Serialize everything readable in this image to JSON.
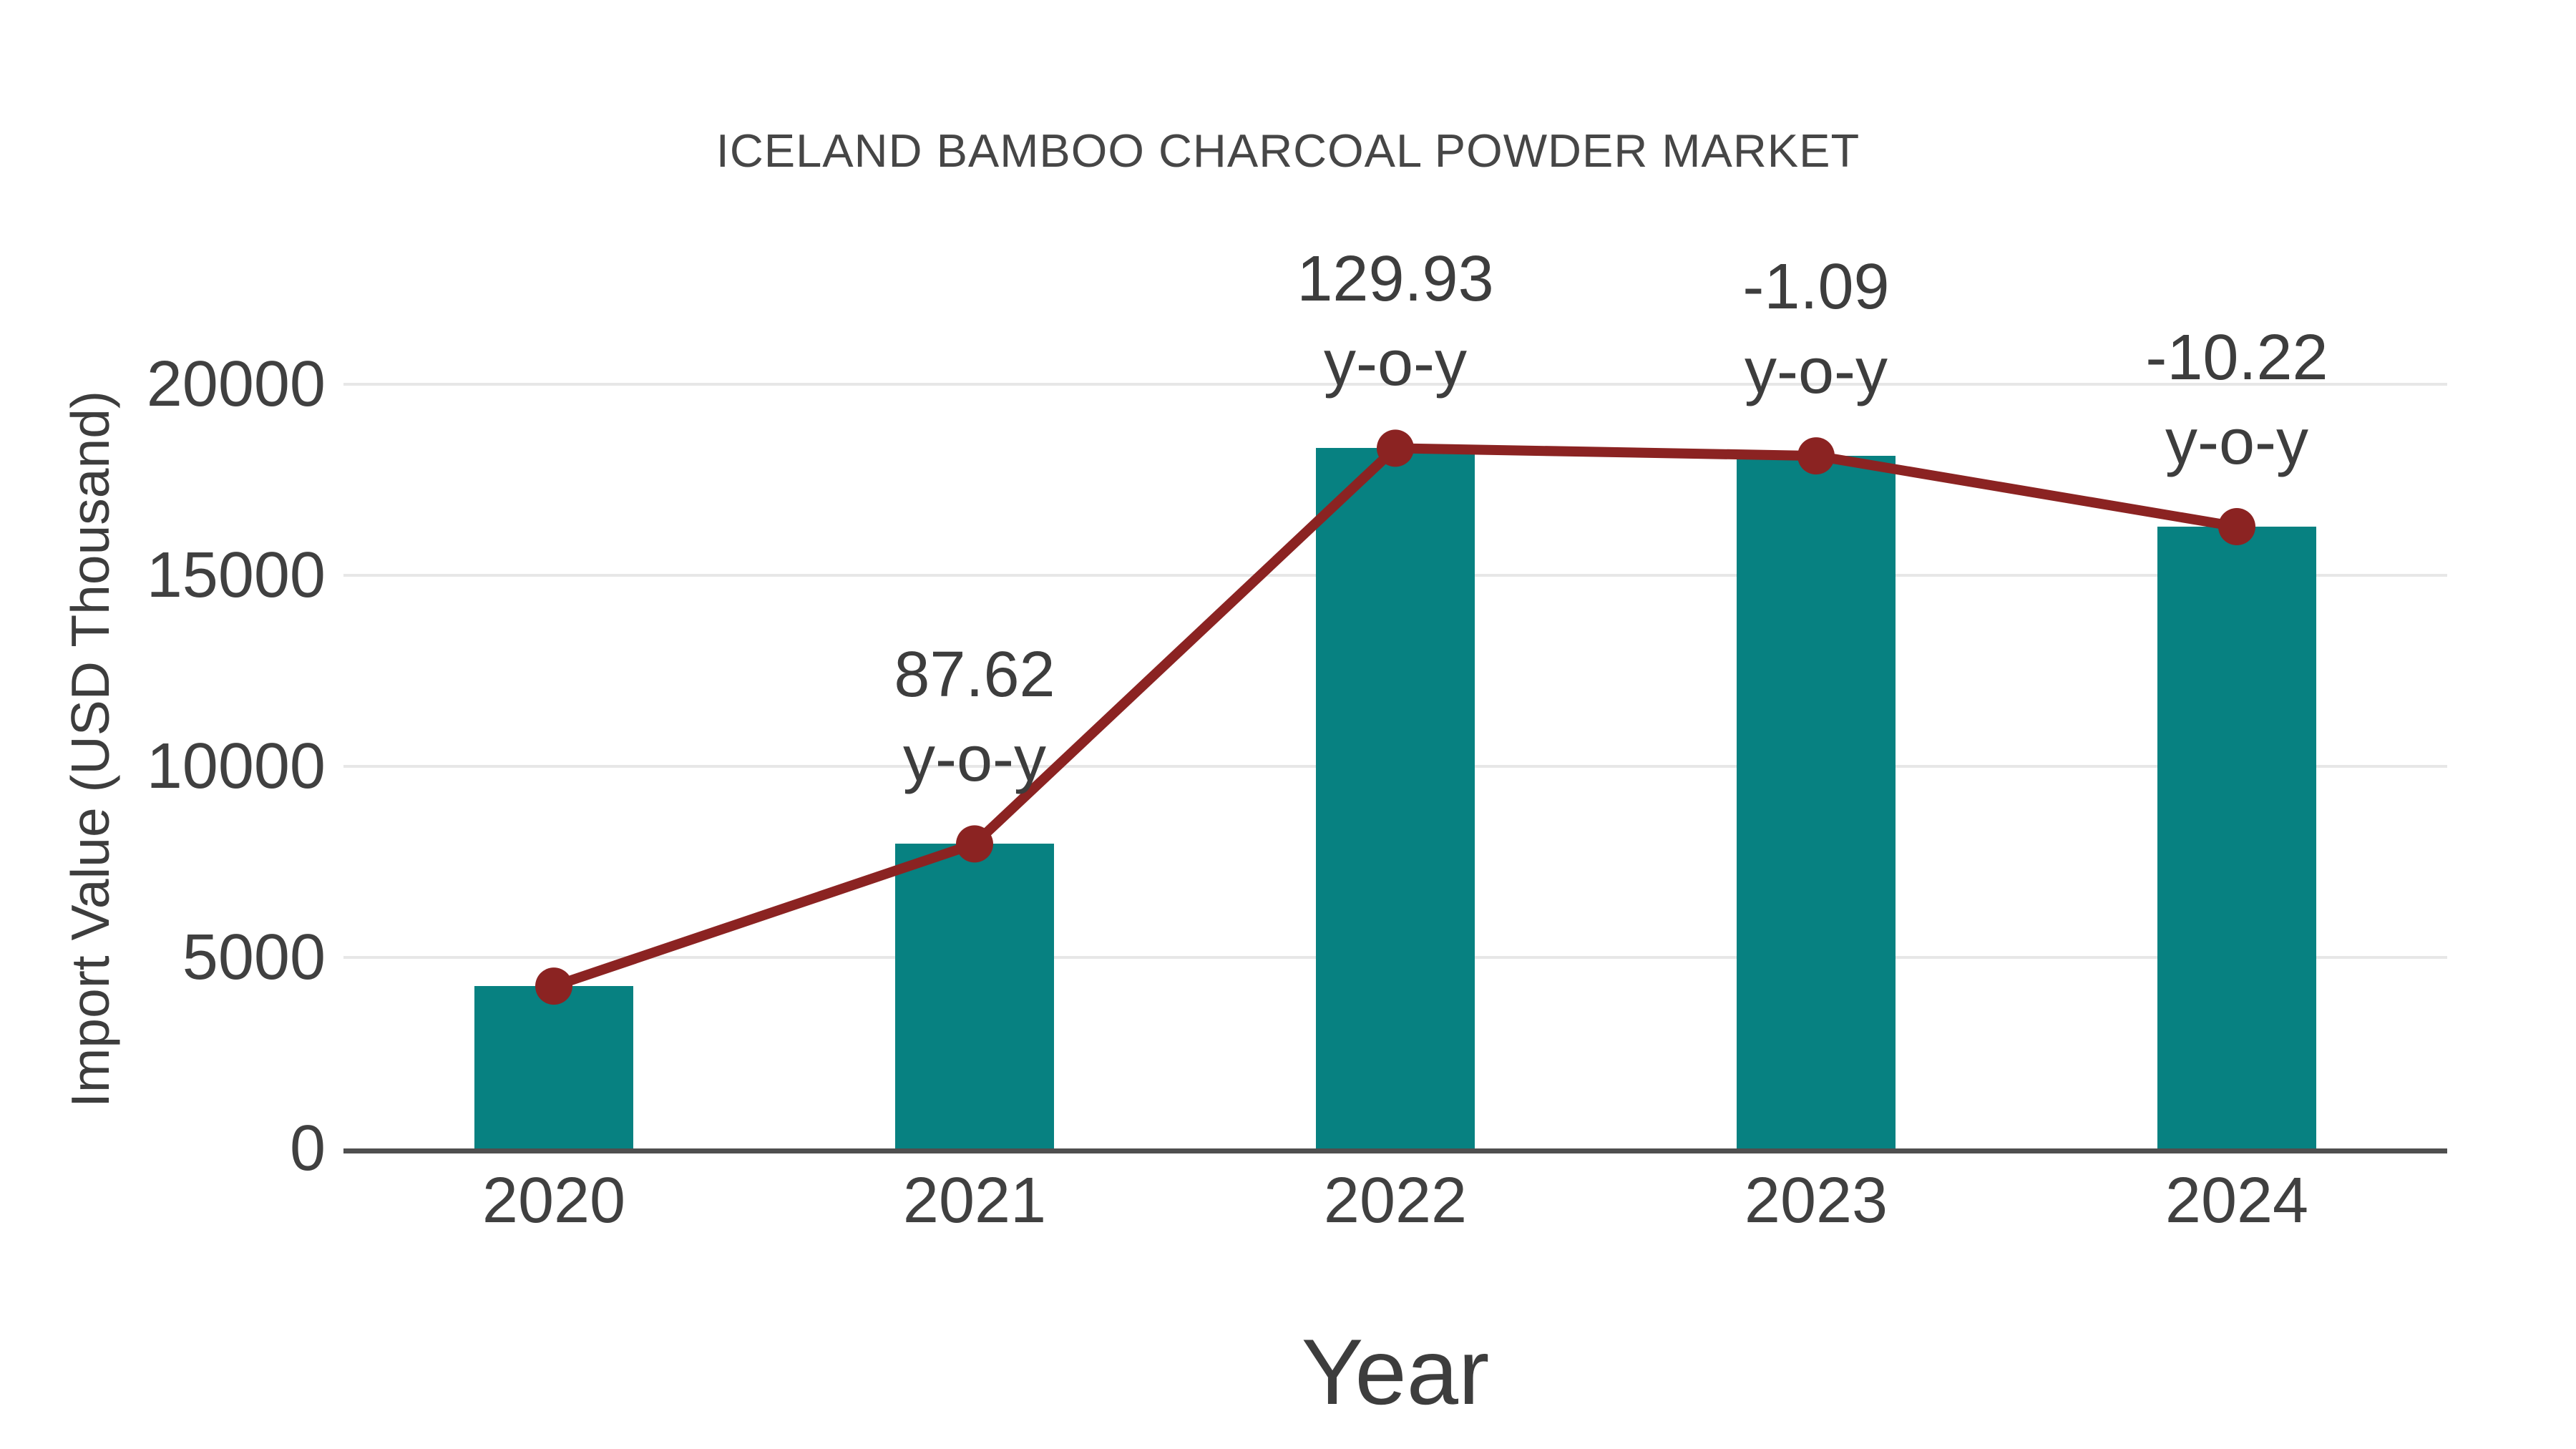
{
  "chart_data": {
    "type": "bar",
    "title": "ICELAND BAMBOO CHARCOAL POWDER MARKET",
    "xlabel": "Year",
    "ylabel": "Import Value (USD Thousand)",
    "categories": [
      "2020",
      "2021",
      "2022",
      "2023",
      "2024"
    ],
    "series": [
      {
        "name": "Import Value bars",
        "type": "bar",
        "color": "#078181",
        "values": [
          4248,
          7970,
          18326,
          18126,
          16273
        ]
      },
      {
        "name": "Import Value trend line",
        "type": "line",
        "color": "#8b2322",
        "values": [
          4248,
          7970,
          18326,
          18126,
          16273
        ]
      }
    ],
    "annotations": [
      {
        "category": "2021",
        "value_line": "87.62",
        "label_line": "y-o-y"
      },
      {
        "category": "2022",
        "value_line": "129.93",
        "label_line": "y-o-y"
      },
      {
        "category": "2023",
        "value_line": "-1.09",
        "label_line": "y-o-y"
      },
      {
        "category": "2024",
        "value_line": "-10.22",
        "label_line": "y-o-y"
      }
    ],
    "ylim": [
      0,
      20000
    ],
    "yticks": [
      0,
      5000,
      10000,
      15000,
      20000
    ],
    "grid": true,
    "legend_position": "none"
  },
  "colors": {
    "bar": "#078181",
    "line": "#8b2322",
    "marker": "#8b2322",
    "gridline": "#e7e7e7",
    "axis": "#4f4f4f",
    "text": "#404040",
    "background": "#ffffff"
  }
}
